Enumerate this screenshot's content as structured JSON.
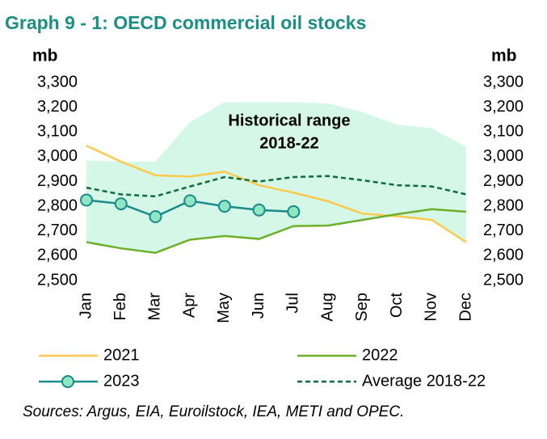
{
  "chart_data": {
    "type": "line",
    "title": "Graph 9 - 1: OECD commercial oil stocks",
    "ylabel": "mb",
    "y2label": "mb",
    "annotation": [
      "Historical range",
      "2018-22"
    ],
    "source": "Sources: Argus, EIA, Euroilstock, IEA, METI and OPEC.",
    "categories": [
      "Jan",
      "Feb",
      "Mar",
      "Apr",
      "May",
      "Jun",
      "Jul",
      "Aug",
      "Sep",
      "Oct",
      "Nov",
      "Dec"
    ],
    "range": {
      "color": "#d4f7e8",
      "upper": [
        2985,
        2980,
        2980,
        3140,
        3220,
        3220,
        3220,
        3215,
        3180,
        3130,
        3115,
        3040
      ],
      "lower": [
        2655,
        2630,
        2612,
        2665,
        2680,
        2668,
        2720,
        2722,
        2745,
        2760,
        2745,
        2655
      ]
    },
    "series": [
      {
        "name": "2021",
        "color": "#fdc94a",
        "values": [
          3045,
          2980,
          2925,
          2920,
          2940,
          2885,
          2855,
          2820,
          2770,
          2760,
          2745,
          2655
        ]
      },
      {
        "name": "2022",
        "color": "#6cb02a",
        "values": [
          2655,
          2630,
          2612,
          2665,
          2680,
          2668,
          2720,
          2722,
          2745,
          2768,
          2788,
          2778
        ]
      },
      {
        "name": "2023",
        "color": "#1a8a8a",
        "marker_fill": "#8fe6c2",
        "values": [
          2825,
          2810,
          2758,
          2822,
          2800,
          2785,
          2778,
          null,
          null,
          null,
          null,
          null
        ]
      },
      {
        "name": "Average 2018-22",
        "color": "#0d6b3a",
        "dashed": true,
        "values": [
          2875,
          2848,
          2840,
          2880,
          2918,
          2900,
          2918,
          2922,
          2905,
          2885,
          2880,
          2848
        ]
      }
    ],
    "ylim": [
      2500,
      3300
    ],
    "yticks": [
      {
        "value": 2500,
        "label": "2,500"
      },
      {
        "value": 2600,
        "label": "2,600"
      },
      {
        "value": 2700,
        "label": "2,700"
      },
      {
        "value": 2800,
        "label": "2,800"
      },
      {
        "value": 2900,
        "label": "2,900"
      },
      {
        "value": 3000,
        "label": "3,000"
      },
      {
        "value": 3100,
        "label": "3,100"
      },
      {
        "value": 3200,
        "label": "3,200"
      },
      {
        "value": 3300,
        "label": "3,300"
      }
    ],
    "y2lim": [
      2500,
      3300
    ],
    "y2ticks": [
      {
        "value": 2500,
        "label": "2,500"
      },
      {
        "value": 2600,
        "label": "2,600"
      },
      {
        "value": 2700,
        "label": "2,700"
      },
      {
        "value": 2800,
        "label": "2,800"
      },
      {
        "value": 2900,
        "label": "2,900"
      },
      {
        "value": 3000,
        "label": "3,000"
      },
      {
        "value": 3100,
        "label": "3,100"
      },
      {
        "value": 3200,
        "label": "3,200"
      },
      {
        "value": 3300,
        "label": "3,300"
      }
    ]
  }
}
